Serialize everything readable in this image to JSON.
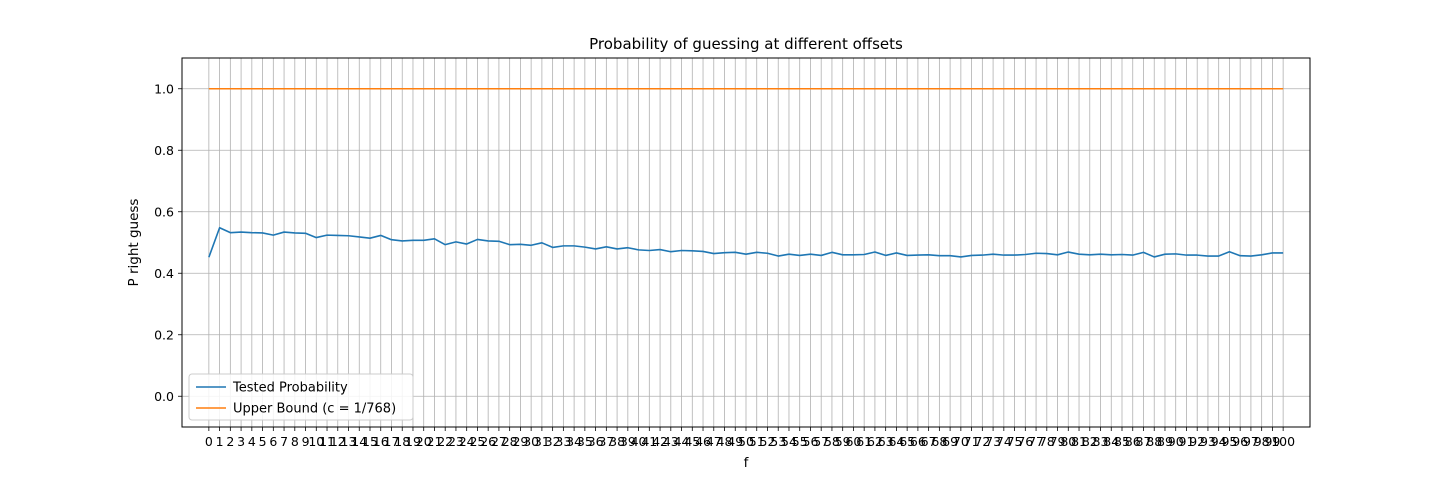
{
  "chart_data": {
    "type": "line",
    "title": "Probability of guessing at different offsets",
    "xlabel": "f",
    "ylabel": "P right guess",
    "xlim": [
      -2.5,
      102.5
    ],
    "ylim": [
      -0.1,
      1.1
    ],
    "x": [
      0,
      1,
      2,
      3,
      4,
      5,
      6,
      7,
      8,
      9,
      10,
      11,
      12,
      13,
      14,
      15,
      16,
      17,
      18,
      19,
      20,
      21,
      22,
      23,
      24,
      25,
      26,
      27,
      28,
      29,
      30,
      31,
      32,
      33,
      34,
      35,
      36,
      37,
      38,
      39,
      40,
      41,
      42,
      43,
      44,
      45,
      46,
      47,
      48,
      49,
      50,
      51,
      52,
      53,
      54,
      55,
      56,
      57,
      58,
      59,
      60,
      61,
      62,
      63,
      64,
      65,
      66,
      67,
      68,
      69,
      70,
      71,
      72,
      73,
      74,
      75,
      76,
      77,
      78,
      79,
      80,
      81,
      82,
      83,
      84,
      85,
      86,
      87,
      88,
      89,
      90,
      91,
      92,
      93,
      94,
      95,
      96,
      97,
      98,
      99,
      100
    ],
    "x_ticks": [
      0,
      1,
      2,
      3,
      4,
      5,
      6,
      7,
      8,
      9,
      10,
      11,
      12,
      13,
      14,
      15,
      16,
      17,
      18,
      19,
      20,
      21,
      22,
      23,
      24,
      25,
      26,
      27,
      28,
      29,
      30,
      31,
      32,
      33,
      34,
      35,
      36,
      37,
      38,
      39,
      40,
      41,
      42,
      43,
      44,
      45,
      46,
      47,
      48,
      49,
      50,
      51,
      52,
      53,
      54,
      55,
      56,
      57,
      58,
      59,
      60,
      61,
      62,
      63,
      64,
      65,
      66,
      67,
      68,
      69,
      70,
      71,
      72,
      73,
      74,
      75,
      76,
      77,
      78,
      79,
      80,
      81,
      82,
      83,
      84,
      85,
      86,
      87,
      88,
      89,
      90,
      91,
      92,
      93,
      94,
      95,
      96,
      97,
      98,
      99,
      100
    ],
    "y_ticks": [
      0.0,
      0.2,
      0.4,
      0.6,
      0.8,
      1.0
    ],
    "y_tick_labels": [
      "0.0",
      "0.2",
      "0.4",
      "0.6",
      "0.8",
      "1.0"
    ],
    "grid": true,
    "legend_position": "lower-left",
    "series": [
      {
        "name": "Tested Probability",
        "color": "#1f77b4",
        "values": [
          0.452,
          0.548,
          0.532,
          0.534,
          0.532,
          0.531,
          0.524,
          0.534,
          0.531,
          0.53,
          0.516,
          0.524,
          0.523,
          0.522,
          0.518,
          0.514,
          0.523,
          0.509,
          0.505,
          0.507,
          0.507,
          0.512,
          0.493,
          0.502,
          0.495,
          0.51,
          0.505,
          0.504,
          0.493,
          0.494,
          0.491,
          0.499,
          0.484,
          0.489,
          0.489,
          0.485,
          0.479,
          0.486,
          0.479,
          0.483,
          0.476,
          0.474,
          0.477,
          0.47,
          0.474,
          0.473,
          0.471,
          0.464,
          0.467,
          0.468,
          0.462,
          0.468,
          0.465,
          0.456,
          0.462,
          0.458,
          0.462,
          0.458,
          0.468,
          0.46,
          0.46,
          0.461,
          0.469,
          0.458,
          0.466,
          0.458,
          0.459,
          0.46,
          0.457,
          0.457,
          0.453,
          0.458,
          0.459,
          0.462,
          0.459,
          0.459,
          0.461,
          0.465,
          0.464,
          0.46,
          0.469,
          0.462,
          0.46,
          0.462,
          0.46,
          0.461,
          0.459,
          0.468,
          0.453,
          0.462,
          0.463,
          0.459,
          0.459,
          0.456,
          0.456,
          0.47,
          0.457,
          0.456,
          0.46,
          0.466,
          0.466
        ]
      },
      {
        "name": "Upper Bound (c = 1/768)",
        "color": "#ff7f0e",
        "values": [
          1,
          1,
          1,
          1,
          1,
          1,
          1,
          1,
          1,
          1,
          1,
          1,
          1,
          1,
          1,
          1,
          1,
          1,
          1,
          1,
          1,
          1,
          1,
          1,
          1,
          1,
          1,
          1,
          1,
          1,
          1,
          1,
          1,
          1,
          1,
          1,
          1,
          1,
          1,
          1,
          1,
          1,
          1,
          1,
          1,
          1,
          1,
          1,
          1,
          1,
          1,
          1,
          1,
          1,
          1,
          1,
          1,
          1,
          1,
          1,
          1,
          1,
          1,
          1,
          1,
          1,
          1,
          1,
          1,
          1,
          1,
          1,
          1,
          1,
          1,
          1,
          1,
          1,
          1,
          1,
          1,
          1,
          1,
          1,
          1,
          1,
          1,
          1,
          1,
          1,
          1,
          1,
          1,
          1,
          1,
          1,
          1,
          1,
          1,
          1,
          1
        ]
      }
    ]
  }
}
